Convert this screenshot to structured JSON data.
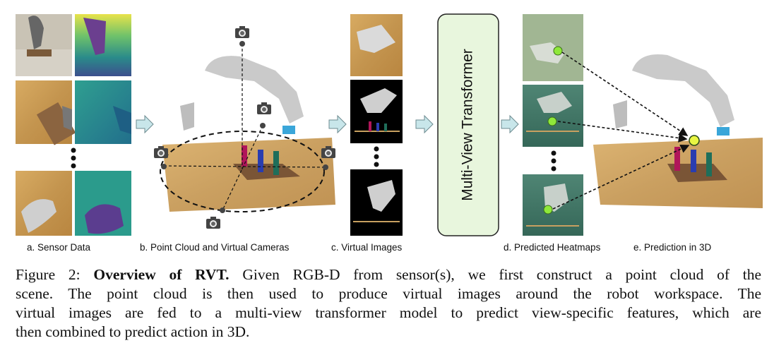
{
  "figure": {
    "panels": {
      "a": "a. Sensor Data",
      "b": "b. Point Cloud and Virtual Cameras",
      "c": "c. Virtual Images",
      "d": "d. Predicted Heatmaps",
      "e": "e. Prediction in 3D"
    },
    "transformer_box_label": "Multi-View Transformer",
    "colors": {
      "arrow_fill": "#c8e6ea",
      "transformer_fill": "#e8f6dd",
      "table_wood": "#c89a55",
      "heatmap_bg": "#3d7063",
      "heat_point": "#8fe83a",
      "prediction_point": "#e9f542"
    },
    "icons": [
      "camera-icon",
      "right-arrow-icon"
    ]
  },
  "caption": {
    "prefix": "Figure 2:",
    "bold_title": "Overview of RVT.",
    "line1_rest": "Given RGB-D from sensor(s), we first construct a point cloud of the",
    "line2": "scene.  The point cloud is then used to produce virtual images around the robot workspace.  The",
    "line3": "virtual images are fed to a multi-view transformer model to predict view-specific features, which are",
    "line4": "then combined to predict action in 3D."
  }
}
